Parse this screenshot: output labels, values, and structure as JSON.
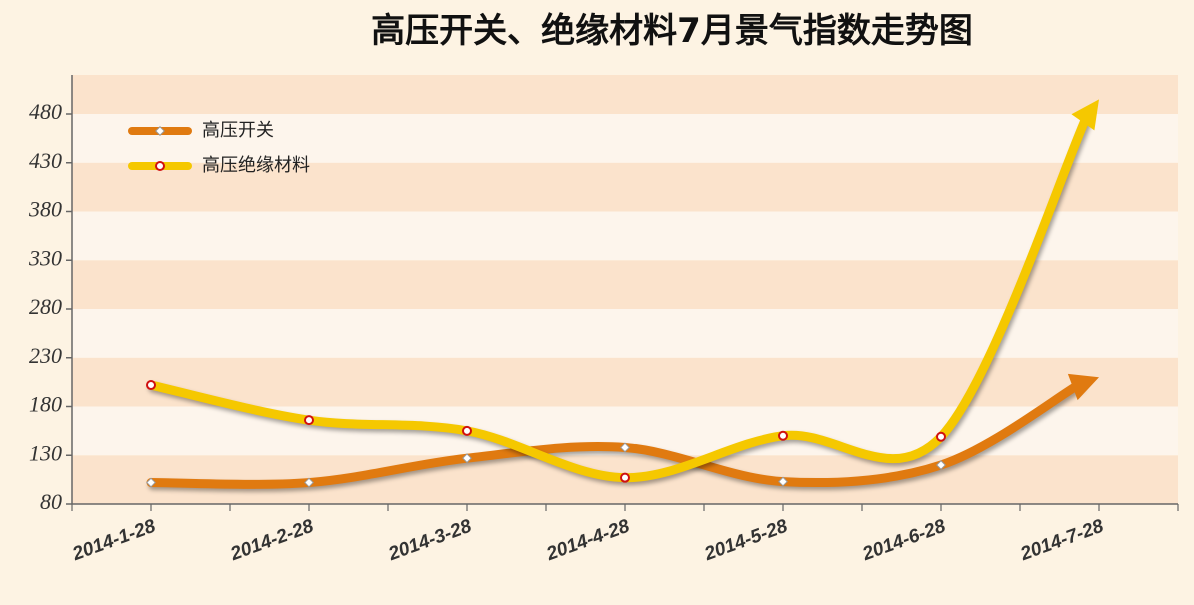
{
  "chart_data": {
    "type": "line",
    "title": "高压开关、绝缘材料7月景气指数走势图",
    "categories": [
      "2014-1-28",
      "2014-2-28",
      "2014-3-28",
      "2014-4-28",
      "2014-5-28",
      "2014-6-28",
      "2014-7-28"
    ],
    "series": [
      {
        "name": "高压开关",
        "color": "#e07a10",
        "values": [
          102,
          102,
          127,
          138,
          103,
          120,
          210
        ]
      },
      {
        "name": "高压绝缘材料",
        "color": "#f5c800",
        "values": [
          202,
          166,
          155,
          107,
          150,
          149,
          495
        ]
      }
    ],
    "ylim": [
      80,
      520
    ],
    "yticks": [
      80,
      130,
      180,
      230,
      280,
      330,
      380,
      430,
      480
    ],
    "legend": "upper-left"
  }
}
